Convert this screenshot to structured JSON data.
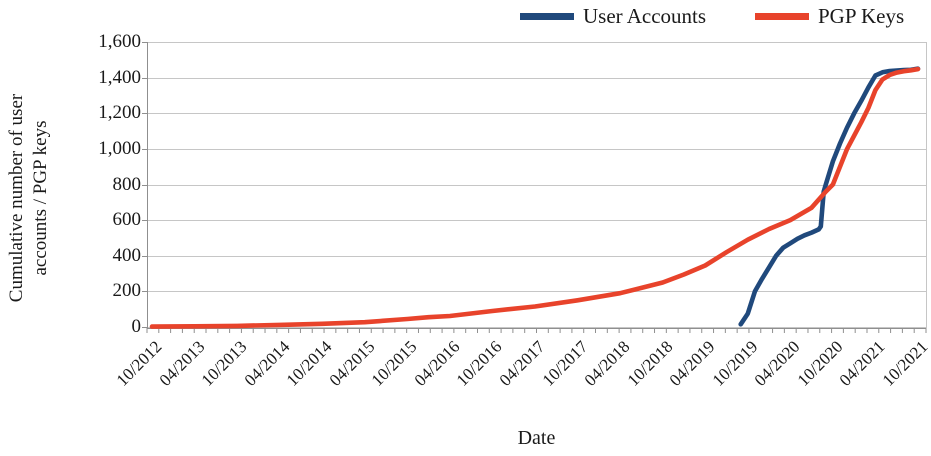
{
  "legend": {
    "items": [
      {
        "label": "User Accounts",
        "color": "#20497c"
      },
      {
        "label": "PGP Keys",
        "color": "#e8432b"
      }
    ]
  },
  "axes": {
    "ylabel_lines": [
      "Cumulative number of user",
      "accounts / PGP keys"
    ],
    "xlabel": "Date",
    "y_ticks": [
      "0",
      "200",
      "400",
      "600",
      "800",
      "1,000",
      "1,200",
      "1,400",
      "1,600"
    ],
    "x_ticks": [
      "10/2012",
      "04/2013",
      "10/2013",
      "04/2014",
      "10/2014",
      "04/2015",
      "10/2015",
      "04/2016",
      "10/2016",
      "04/2017",
      "10/2017",
      "04/2018",
      "10/2018",
      "04/2019",
      "10/2019",
      "04/2020",
      "10/2020",
      "04/2021",
      "10/2021"
    ]
  },
  "chart_data": {
    "type": "line",
    "title": "",
    "xlabel": "Date",
    "ylabel": "Cumulative number of user accounts / PGP keys",
    "ylim": [
      0,
      1600
    ],
    "ytick_step": 200,
    "grid": "horizontal",
    "legend_position": "top",
    "x_unit": "months since 10/2012, major ticks every 6 months",
    "x_tick_months": [
      0,
      6,
      12,
      18,
      24,
      30,
      36,
      42,
      48,
      54,
      60,
      66,
      72,
      78,
      84,
      90,
      96,
      102,
      108
    ],
    "series": [
      {
        "name": "User Accounts",
        "color": "#20497c",
        "x": [
          83,
          84,
          85,
          86,
          87,
          88,
          89,
          90,
          91,
          92,
          93,
          94,
          94.3,
          94.7,
          95,
          96,
          97,
          98,
          99,
          100,
          101,
          102,
          103,
          104,
          105,
          106,
          107,
          108
        ],
        "values": [
          15,
          75,
          200,
          270,
          335,
          400,
          445,
          470,
          495,
          515,
          530,
          548,
          565,
          760,
          800,
          930,
          1030,
          1120,
          1200,
          1270,
          1345,
          1412,
          1430,
          1437,
          1440,
          1442,
          1444,
          1450
        ]
      },
      {
        "name": "PGP Keys",
        "color": "#e8432b",
        "x": [
          0,
          6,
          12,
          18,
          24,
          30,
          36,
          39,
          42,
          48,
          54,
          60,
          66,
          72,
          75,
          78,
          81,
          84,
          87,
          90,
          93,
          95,
          96,
          97,
          98,
          100,
          101,
          102,
          103,
          104,
          105,
          106,
          107,
          108
        ],
        "values": [
          2,
          4,
          6,
          12,
          18,
          27,
          45,
          55,
          62,
          90,
          115,
          150,
          190,
          250,
          295,
          345,
          420,
          490,
          550,
          600,
          670,
          760,
          800,
          900,
          1000,
          1150,
          1230,
          1330,
          1390,
          1415,
          1428,
          1436,
          1441,
          1448
        ]
      }
    ]
  }
}
